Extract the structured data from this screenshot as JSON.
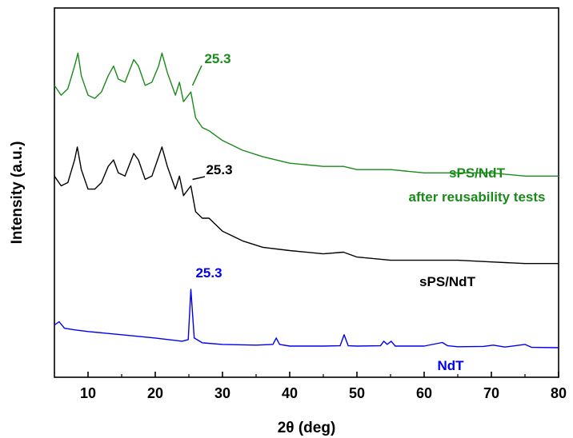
{
  "chart_data": {
    "type": "line",
    "title": "",
    "xlabel": "2θ (deg)",
    "ylabel": "Intensity (a.u.)",
    "xlim": [
      5,
      80
    ],
    "ylim": [
      0,
      100
    ],
    "xticks": [
      10,
      20,
      30,
      40,
      50,
      60,
      70,
      80
    ],
    "xtick_labels": [
      "10",
      "20",
      "30",
      "40",
      "50",
      "60",
      "70",
      "80"
    ],
    "y_ticks_shown": false,
    "grid": false,
    "legend": "none",
    "series": [
      {
        "name": "sPS/NdT\nafter reusability tests",
        "label_lines": [
          "sPS/NdT",
          "after reusability tests"
        ],
        "color": "#1a8a1a",
        "points": [
          [
            5,
            81
          ],
          [
            6,
            78
          ],
          [
            7,
            80
          ],
          [
            8,
            87
          ],
          [
            8.5,
            91
          ],
          [
            9,
            84
          ],
          [
            10,
            78
          ],
          [
            11,
            77
          ],
          [
            12,
            79
          ],
          [
            13,
            84
          ],
          [
            13.8,
            87
          ],
          [
            14.5,
            83
          ],
          [
            15.5,
            82
          ],
          [
            16.8,
            89
          ],
          [
            17.5,
            87
          ],
          [
            18.5,
            81
          ],
          [
            19.5,
            82
          ],
          [
            20.5,
            87
          ],
          [
            21,
            91
          ],
          [
            21.8,
            85
          ],
          [
            23,
            78
          ],
          [
            23.6,
            82
          ],
          [
            24.2,
            76
          ],
          [
            25.3,
            79
          ],
          [
            26,
            71
          ],
          [
            27,
            68
          ],
          [
            28,
            67
          ],
          [
            30,
            64
          ],
          [
            33,
            61
          ],
          [
            36,
            59
          ],
          [
            40,
            57
          ],
          [
            45,
            56
          ],
          [
            48,
            56
          ],
          [
            50,
            55
          ],
          [
            55,
            55
          ],
          [
            60,
            54
          ],
          [
            65,
            54
          ],
          [
            70,
            54
          ],
          [
            75,
            53
          ],
          [
            80,
            53
          ]
        ],
        "peak_annotation": {
          "x": 25.3,
          "label": "25.3"
        }
      },
      {
        "name": "sPS/NdT",
        "label_lines": [
          "sPS/NdT"
        ],
        "color": "#000000",
        "points": [
          [
            5,
            53
          ],
          [
            6,
            50
          ],
          [
            7,
            51
          ],
          [
            8,
            58
          ],
          [
            8.4,
            62
          ],
          [
            9,
            55
          ],
          [
            10,
            49
          ],
          [
            11,
            49
          ],
          [
            12,
            51
          ],
          [
            13,
            56
          ],
          [
            13.8,
            58
          ],
          [
            14.5,
            54
          ],
          [
            15.5,
            53
          ],
          [
            16.8,
            60
          ],
          [
            17.5,
            58
          ],
          [
            18.5,
            52
          ],
          [
            19.5,
            53
          ],
          [
            20.5,
            59
          ],
          [
            21,
            62
          ],
          [
            21.8,
            56
          ],
          [
            23,
            49
          ],
          [
            23.6,
            53
          ],
          [
            24.2,
            47
          ],
          [
            25.3,
            50
          ],
          [
            26,
            42
          ],
          [
            27,
            40
          ],
          [
            28,
            40
          ],
          [
            30,
            36
          ],
          [
            33,
            33
          ],
          [
            36,
            31
          ],
          [
            40,
            30
          ],
          [
            45,
            29
          ],
          [
            48,
            29.5
          ],
          [
            50,
            28
          ],
          [
            55,
            27
          ],
          [
            60,
            27
          ],
          [
            65,
            27
          ],
          [
            70,
            26.5
          ],
          [
            75,
            26
          ],
          [
            80,
            26
          ]
        ],
        "peak_annotation": {
          "x": 25.3,
          "label": "25.3"
        }
      },
      {
        "name": "NdT",
        "label_lines": [
          "NdT"
        ],
        "color": "#0000ee",
        "points": [
          [
            5,
            7
          ],
          [
            5.7,
            8
          ],
          [
            6.5,
            6
          ],
          [
            8,
            5.5
          ],
          [
            10,
            5
          ],
          [
            15,
            4
          ],
          [
            20,
            3
          ],
          [
            24,
            2
          ],
          [
            24.9,
            2.5
          ],
          [
            25.3,
            18
          ],
          [
            25.8,
            3
          ],
          [
            27,
            1.5
          ],
          [
            30,
            1
          ],
          [
            35,
            0.8
          ],
          [
            37.5,
            1
          ],
          [
            38,
            3
          ],
          [
            38.5,
            1
          ],
          [
            40,
            0.5
          ],
          [
            45,
            0.5
          ],
          [
            47.5,
            0.6
          ],
          [
            48.1,
            4
          ],
          [
            48.7,
            0.6
          ],
          [
            50,
            0.5
          ],
          [
            53.5,
            0.6
          ],
          [
            54,
            2
          ],
          [
            54.5,
            1
          ],
          [
            55.1,
            2
          ],
          [
            55.7,
            0.5
          ],
          [
            60,
            0.5
          ],
          [
            62.7,
            1.6
          ],
          [
            63.5,
            0.6
          ],
          [
            65,
            0.3
          ],
          [
            68.8,
            0.4
          ],
          [
            70.3,
            0.8
          ],
          [
            72,
            0.2
          ],
          [
            75,
            1
          ],
          [
            76,
            0.1
          ],
          [
            80,
            0
          ]
        ],
        "peak_annotation": {
          "x": 25.3,
          "label": "25.3"
        }
      }
    ]
  }
}
